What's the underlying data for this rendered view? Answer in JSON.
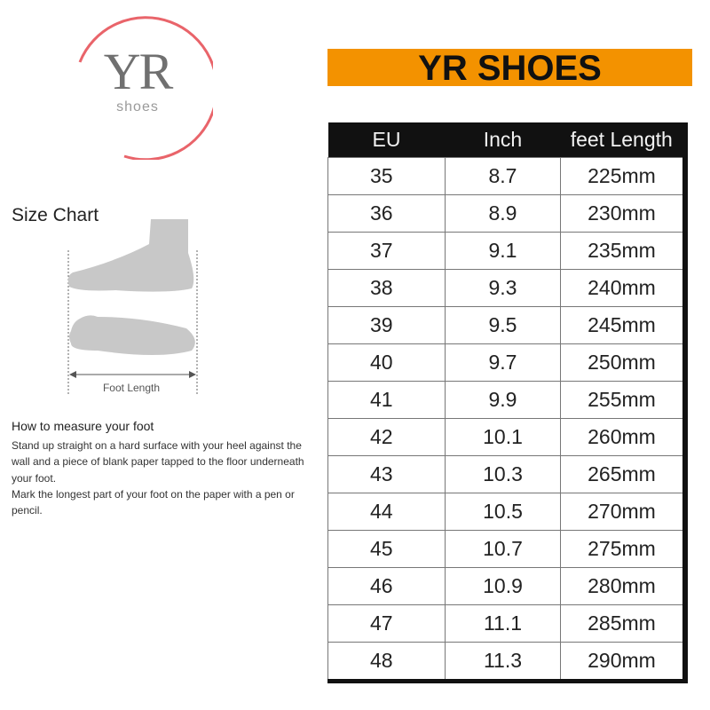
{
  "logo": {
    "initials": "YR",
    "subtitle": "shoes",
    "ring_color": "#e9646a"
  },
  "left": {
    "size_chart_title": "Size Chart",
    "foot_length_label": "Foot Length",
    "howto_title": "How to measure your foot",
    "paragraphs": [
      "Stand up straight on a hard surface with your heel against the wall and a piece of blank paper tapped to the floor underneath your foot.",
      "Mark the longest part of your foot on the paper with a pen or pencil."
    ]
  },
  "banner": {
    "title": "YR SHOES",
    "color": "#f39200"
  },
  "table": {
    "headers": [
      "EU",
      "Inch",
      "feet Length"
    ],
    "rows": [
      [
        "35",
        "8.7",
        "225mm"
      ],
      [
        "36",
        "8.9",
        "230mm"
      ],
      [
        "37",
        "9.1",
        "235mm"
      ],
      [
        "38",
        "9.3",
        "240mm"
      ],
      [
        "39",
        "9.5",
        "245mm"
      ],
      [
        "40",
        "9.7",
        "250mm"
      ],
      [
        "41",
        "9.9",
        "255mm"
      ],
      [
        "42",
        "10.1",
        "260mm"
      ],
      [
        "43",
        "10.3",
        "265mm"
      ],
      [
        "44",
        "10.5",
        "270mm"
      ],
      [
        "45",
        "10.7",
        "275mm"
      ],
      [
        "46",
        "10.9",
        "280mm"
      ],
      [
        "47",
        "11.1",
        "285mm"
      ],
      [
        "48",
        "11.3",
        "290mm"
      ]
    ]
  }
}
